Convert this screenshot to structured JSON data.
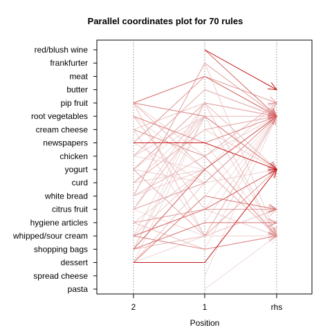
{
  "chart_data": {
    "type": "parallel-coordinates",
    "title": "Parallel coordinates plot for 70 rules",
    "xlabel": "Position",
    "x_axis": [
      "2",
      "1",
      "rhs"
    ],
    "items": [
      "red/blush wine",
      "frankfurter",
      "meat",
      "butter",
      "pip fruit",
      "root vegetables",
      "cream cheese",
      "newspapers",
      "chicken",
      "yogurt",
      "curd",
      "white bread",
      "citrus fruit",
      "hygiene articles",
      "whipped/sour cream",
      "shopping bags",
      "dessert",
      "spread cheese",
      "pasta"
    ],
    "grid": "vertical dotted lines at each position",
    "color_scale": [
      "#f2e3e3",
      "#c00000"
    ],
    "rules": [
      {
        "path": [
          null,
          "red/blush wine",
          "butter"
        ],
        "strength": 0.95
      },
      {
        "path": [
          null,
          "red/blush wine",
          "root vegetables"
        ],
        "strength": 0.55
      },
      {
        "path": [
          "pip fruit",
          "meat",
          "root vegetables"
        ],
        "strength": 0.55
      },
      {
        "path": [
          "newspapers",
          "newspapers",
          "yogurt"
        ],
        "strength": 0.9
      },
      {
        "path": [
          "dessert",
          "dessert",
          "yogurt"
        ],
        "strength": 0.9
      },
      {
        "path": [
          "shopping bags",
          "yogurt",
          "root vegetables"
        ],
        "strength": 0.6
      },
      {
        "path": [
          "whipped/sour cream",
          "citrus fruit",
          "yogurt"
        ],
        "strength": 0.55
      },
      {
        "path": [
          "dessert",
          "white bread",
          "citrus fruit"
        ],
        "strength": 0.5
      },
      {
        "path": [
          "shopping bags",
          "hygiene articles",
          "hygiene articles"
        ],
        "strength": 0.5
      },
      {
        "path": [
          "pip fruit",
          "root vegetables",
          "yogurt"
        ],
        "strength": 0.45
      },
      {
        "path": [
          "root vegetables",
          "newspapers",
          "root vegetables"
        ],
        "strength": 0.45
      },
      {
        "path": [
          "cream cheese",
          "chicken",
          "whipped/sour cream"
        ],
        "strength": 0.4
      },
      {
        "path": [
          "whipped/sour cream",
          "shopping bags",
          "whipped/sour cream"
        ],
        "strength": 0.4
      },
      {
        "path": [
          "citrus fruit",
          "curd",
          "root vegetables"
        ],
        "strength": 0.35
      },
      {
        "path": [
          "newspapers",
          "meat",
          "pip fruit"
        ],
        "strength": 0.35
      },
      {
        "path": [
          "white bread",
          "frankfurter",
          "root vegetables"
        ],
        "strength": 0.3
      },
      {
        "path": [
          "yogurt",
          "pip fruit",
          "root vegetables"
        ],
        "strength": 0.3
      },
      {
        "path": [
          "hygiene articles",
          "citrus fruit",
          "citrus fruit"
        ],
        "strength": 0.3
      },
      {
        "path": [
          "chicken",
          "butter",
          "root vegetables"
        ],
        "strength": 0.25
      },
      {
        "path": [
          "curd",
          "cream cheese",
          "root vegetables"
        ],
        "strength": 0.25
      },
      {
        "path": [
          "yogurt",
          "whipped/sour cream",
          "yogurt"
        ],
        "strength": 0.25
      },
      {
        "path": [
          "pip fruit",
          "yogurt",
          "whipped/sour cream"
        ],
        "strength": 0.2
      },
      {
        "path": [
          "citrus fruit",
          "root vegetables",
          "root vegetables"
        ],
        "strength": 0.2
      },
      {
        "path": [
          "white bread",
          "chicken",
          "pip fruit"
        ],
        "strength": 0.2
      },
      {
        "path": [
          "shopping bags",
          "whipped/sour cream",
          "root vegetables"
        ],
        "strength": 0.2
      },
      {
        "path": [
          "dessert",
          "curd",
          "root vegetables"
        ],
        "strength": 0.15
      },
      {
        "path": [
          "hygiene articles",
          "shopping bags",
          "whipped/sour cream"
        ],
        "strength": 0.15
      },
      {
        "path": [
          "cream cheese",
          "pip fruit",
          "yogurt"
        ],
        "strength": 0.15
      },
      {
        "path": [
          "root vegetables",
          "citrus fruit",
          "yogurt"
        ],
        "strength": 0.15
      },
      {
        "path": [
          "pip fruit",
          "whipped/sour cream",
          "citrus fruit"
        ],
        "strength": 0.15
      },
      {
        "path": [
          "whipped/sour cream",
          "yogurt",
          "root vegetables"
        ],
        "strength": 0.12
      },
      {
        "path": [
          "chicken",
          "root vegetables",
          "yogurt"
        ],
        "strength": 0.12
      },
      {
        "path": [
          "yogurt",
          "curd",
          "root vegetables"
        ],
        "strength": 0.1
      },
      {
        "path": [
          "curd",
          "yogurt",
          "whipped/sour cream"
        ],
        "strength": 0.1
      },
      {
        "path": [
          "white bread",
          "yogurt",
          "root vegetables"
        ],
        "strength": 0.1
      },
      {
        "path": [
          "citrus fruit",
          "pip fruit",
          "whipped/sour cream"
        ],
        "strength": 0.1
      },
      {
        "path": [
          "hygiene articles",
          "yogurt",
          "root vegetables"
        ],
        "strength": 0.1
      },
      {
        "path": [
          "shopping bags",
          "root vegetables",
          "yogurt"
        ],
        "strength": 0.1
      },
      {
        "path": [
          "dessert",
          "whipped/sour cream",
          "whipped/sour cream"
        ],
        "strength": 0.08
      },
      {
        "path": [
          "newspapers",
          "curd",
          "root vegetables"
        ],
        "strength": 0.08
      },
      {
        "path": [
          "pip fruit",
          "chicken",
          "root vegetables"
        ],
        "strength": 0.08
      },
      {
        "path": [
          "cream cheese",
          "whipped/sour cream",
          "yogurt"
        ],
        "strength": 0.08
      },
      {
        "path": [
          "root vegetables",
          "yogurt",
          "pip fruit"
        ],
        "strength": 0.06
      },
      {
        "path": [
          "yogurt",
          "root vegetables",
          "whipped/sour cream"
        ],
        "strength": 0.06
      },
      {
        "path": [
          "whipped/sour cream",
          "pip fruit",
          "root vegetables"
        ],
        "strength": 0.06
      },
      {
        "path": [
          "curd",
          "root vegetables",
          "yogurt"
        ],
        "strength": 0.06
      },
      {
        "path": [
          "citrus fruit",
          "whipped/sour cream",
          "root vegetables"
        ],
        "strength": 0.05
      },
      {
        "path": [
          "chicken",
          "yogurt",
          "root vegetables"
        ],
        "strength": 0.05
      },
      {
        "path": [
          "shopping bags",
          "pip fruit",
          "yogurt"
        ],
        "strength": 0.05
      },
      {
        "path": [
          "dessert",
          "root vegetables",
          "whipped/sour cream"
        ],
        "strength": 0.05
      },
      {
        "path": [
          null,
          "butter",
          "root vegetables"
        ],
        "strength": 0.2
      },
      {
        "path": [
          null,
          "meat",
          "root vegetables"
        ],
        "strength": 0.15
      },
      {
        "path": [
          null,
          "frankfurter",
          "whipped/sour cream"
        ],
        "strength": 0.1
      },
      {
        "path": [
          null,
          "pip fruit",
          "root vegetables"
        ],
        "strength": 0.1
      },
      {
        "path": [
          null,
          "cream cheese",
          "yogurt"
        ],
        "strength": 0.1
      },
      {
        "path": [
          null,
          "citrus fruit",
          "whipped/sour cream"
        ],
        "strength": 0.1
      },
      {
        "path": [
          null,
          "chicken",
          "root vegetables"
        ],
        "strength": 0.08
      },
      {
        "path": [
          null,
          "whipped/sour cream",
          "root vegetables"
        ],
        "strength": 0.08
      },
      {
        "path": [
          null,
          "curd",
          "yogurt"
        ],
        "strength": 0.08
      },
      {
        "path": [
          null,
          "hygiene articles",
          "root vegetables"
        ],
        "strength": 0.06
      },
      {
        "path": [
          null,
          "shopping bags",
          "root vegetables"
        ],
        "strength": 0.06
      },
      {
        "path": [
          null,
          "dessert",
          "yogurt"
        ],
        "strength": 0.06
      },
      {
        "path": [
          null,
          "spread cheese",
          "root vegetables"
        ],
        "strength": 0.05
      },
      {
        "path": [
          null,
          "pasta",
          "whipped/sour cream"
        ],
        "strength": 0.05
      },
      {
        "path": [
          null,
          "white bread",
          "root vegetables"
        ],
        "strength": 0.05
      },
      {
        "path": [
          null,
          "newspapers",
          "whipped/sour cream"
        ],
        "strength": 0.05
      },
      {
        "path": [
          null,
          "root vegetables",
          "whipped/sour cream"
        ],
        "strength": 0.04
      },
      {
        "path": [
          null,
          "yogurt",
          "whipped/sour cream"
        ],
        "strength": 0.04
      },
      {
        "path": [
          null,
          "citrus fruit",
          "root vegetables"
        ],
        "strength": 0.04
      },
      {
        "path": [
          null,
          "pip fruit",
          "whipped/sour cream"
        ],
        "strength": 0.04
      }
    ]
  }
}
